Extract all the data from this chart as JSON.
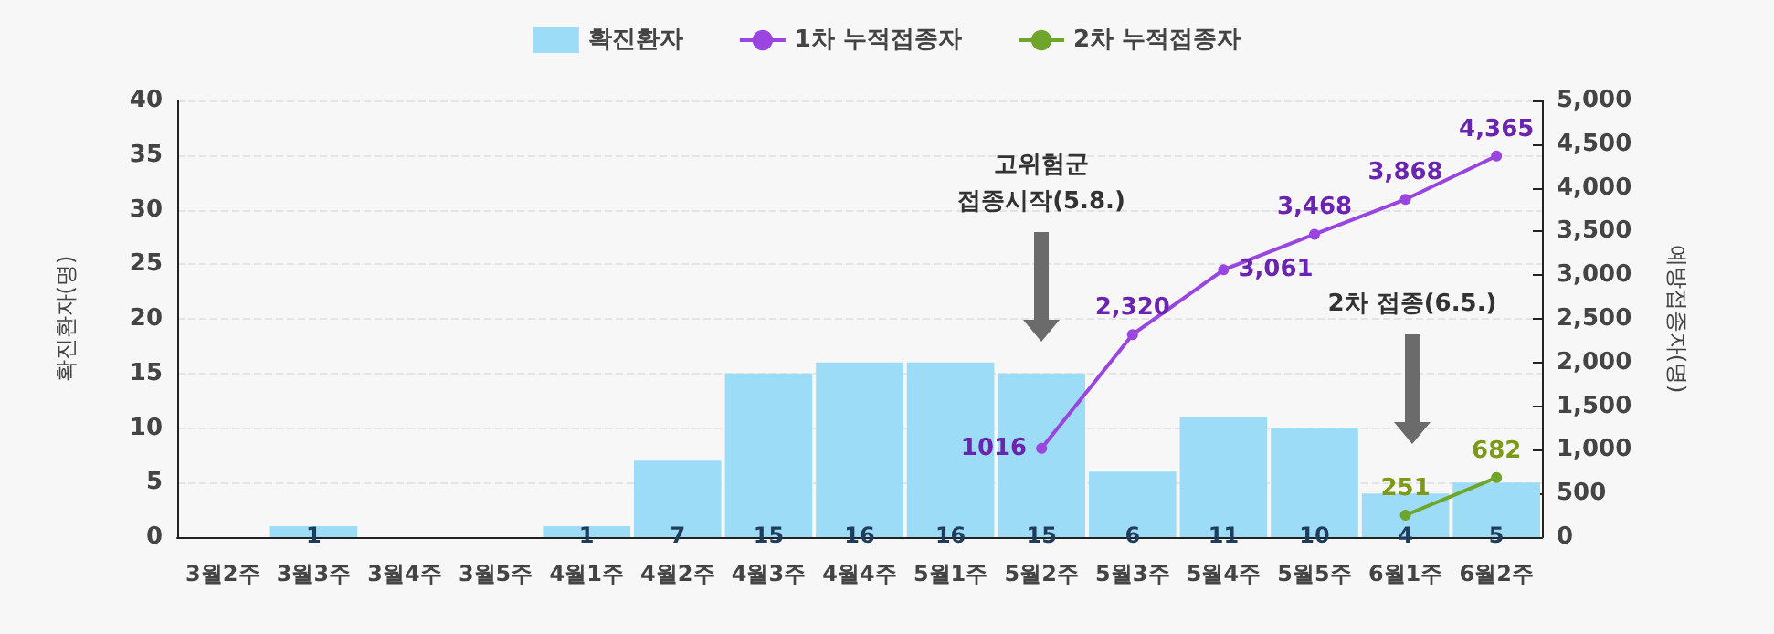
{
  "chart_data": {
    "type": "bar",
    "categories": [
      "3월2주",
      "3월3주",
      "3월4주",
      "3월5주",
      "4월1주",
      "4월2주",
      "4월3주",
      "4월4주",
      "5월1주",
      "5월2주",
      "5월3주",
      "5월4주",
      "5월5주",
      "6월1주",
      "6월2주"
    ],
    "ylabel": "확진환자(명)",
    "y2label": "예방접종자(명)",
    "ylim": [
      0,
      40
    ],
    "yticks": [
      0,
      5,
      10,
      15,
      20,
      25,
      30,
      35,
      40
    ],
    "y2lim": [
      0,
      5000
    ],
    "y2ticks": [
      {
        "value": 0,
        "label": "0"
      },
      {
        "value": 500,
        "label": "500"
      },
      {
        "value": 1000,
        "label": "1,000"
      },
      {
        "value": 1500,
        "label": "1,500"
      },
      {
        "value": 2000,
        "label": "2,000"
      },
      {
        "value": 2500,
        "label": "2,500"
      },
      {
        "value": 3000,
        "label": "3,000"
      },
      {
        "value": 3500,
        "label": "3,500"
      },
      {
        "value": 4000,
        "label": "4,000"
      },
      {
        "value": 4500,
        "label": "4,500"
      },
      {
        "value": 5000,
        "label": "5,000"
      }
    ],
    "grid": "y",
    "legend": "top",
    "series": [
      {
        "name": "확진환자",
        "color": "#9ddcf7",
        "values": [
          null,
          1,
          null,
          null,
          1,
          7,
          15,
          16,
          16,
          15,
          6,
          11,
          10,
          4,
          5
        ],
        "value_labels": [
          null,
          "1",
          null,
          null,
          "1",
          "7",
          "15",
          "16",
          "16",
          "15",
          "6",
          "11",
          "10",
          "4",
          "5"
        ]
      },
      {
        "name": "1차 누적접종자",
        "type": "line",
        "axis": "y2",
        "color": "#9b45e0",
        "marker": "circle",
        "values": [
          null,
          null,
          null,
          null,
          null,
          null,
          null,
          null,
          null,
          1016,
          2320,
          3061,
          3468,
          3868,
          4365
        ],
        "value_labels": [
          null,
          null,
          null,
          null,
          null,
          null,
          null,
          null,
          null,
          "1016",
          "2,320",
          "3,061",
          "3,468",
          "3,868",
          "4,365"
        ]
      },
      {
        "name": "2차 누적접종자",
        "type": "line",
        "axis": "y2",
        "color": "#6ea52a",
        "marker": "circle",
        "values": [
          null,
          null,
          null,
          null,
          null,
          null,
          null,
          null,
          null,
          null,
          null,
          null,
          null,
          251,
          682
        ],
        "value_labels": [
          null,
          null,
          null,
          null,
          null,
          null,
          null,
          null,
          null,
          null,
          null,
          null,
          null,
          "251",
          "682"
        ]
      }
    ],
    "annotations": [
      "고위험군\n접종시작(5.8.)",
      "2차 접종(6.5.)"
    ]
  }
}
